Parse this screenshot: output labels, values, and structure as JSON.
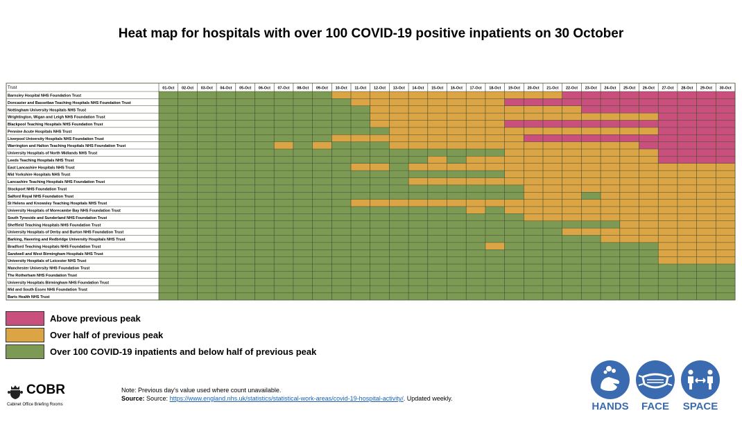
{
  "title": "Heat map for hospitals with over 100 COVID-19 positive inpatients on 30 October",
  "chart_data": {
    "type": "heatmap",
    "column_header": "Trust",
    "days": [
      "01-Oct",
      "02-Oct",
      "03-Oct",
      "04-Oct",
      "05-Oct",
      "06-Oct",
      "07-Oct",
      "08-Oct",
      "09-Oct",
      "10-Oct",
      "11-Oct",
      "12-Oct",
      "13-Oct",
      "14-Oct",
      "15-Oct",
      "16-Oct",
      "17-Oct",
      "18-Oct",
      "19-Oct",
      "20-Oct",
      "21-Oct",
      "22-Oct",
      "23-Oct",
      "24-Oct",
      "25-Oct",
      "26-Oct",
      "27-Oct",
      "28-Oct",
      "29-Oct",
      "30-Oct"
    ],
    "status_key": {
      "G": "Over 100 COVID-19 inpatients and below half of previous peak",
      "A": "Over half of previous peak",
      "P": "Above previous peak"
    },
    "colors": {
      "G": "#7d9a55",
      "A": "#dba444",
      "P": "#c9507c",
      "grid": "#3c4a2a"
    },
    "trusts": [
      {
        "name": "Barnsley Hospital NHS Foundation Trust",
        "status": "GGGGGGGGGAAAAAAAAAAAAPPPPPPPPP"
      },
      {
        "name": "Doncaster and Bassetlaw Teaching Hospitals NHS Foundation Trust",
        "status": "GGGGGGGGGGAAAAAAAAPPPPPPPPPPPP"
      },
      {
        "name": "Nottingham University Hospitals NHS Trust",
        "status": "GGGGGGGGGGGAAAAAAAAAAAPPPPPPPP"
      },
      {
        "name": "Wrightington, Wigan and Leigh NHS Foundation Trust",
        "status": "GGGGGGGGGGGAAAAAAAAAAAAAAAPPPP"
      },
      {
        "name": "Blackpool Teaching Hospitals NHS Foundation Trust",
        "status": "GGGGGGGGGGGAAAAAAAPPPPPPPPPPPP"
      },
      {
        "name": "Pennine Acute Hospitals NHS Trust",
        "status": "GGGGGGGGGGGGAAAAAAAAAAAAAAPPPP"
      },
      {
        "name": "Liverpool University Hospitals NHS Foundation Trust",
        "status": "GGGGGGGGGAAAAAAAAAAPPPPPPPPPPP"
      },
      {
        "name": "Warrington and Halton Teaching Hospitals NHS Foundation Trust",
        "status": "GGGGGGAGAGGGAAAAAAAAAAAAAPPPPP"
      },
      {
        "name": "University Hospitals of North Midlands NHS Trust",
        "status": "GGGGGGGGGGGGGGGGGGAAAAAAAAPPPP"
      },
      {
        "name": "Leeds Teaching Hospitals NHS Trust",
        "status": "GGGGGGGGGGGGGGAGAAAAAAAAAAPPPP"
      },
      {
        "name": "East Lancashire Hospitals NHS Trust",
        "status": "GGGGGGGGGGAAGAAAAAAAAAAAAAAAAA"
      },
      {
        "name": "Mid Yorkshire Hospitals NHS Trust",
        "status": "GGGGGGGGGGGGGGGGGGAAAAAAAAAAAA"
      },
      {
        "name": "Lancashire Teaching Hospitals NHS Foundation Trust",
        "status": "GGGGGGGGGGGGGAAAAAAAAAAAAAAAAA"
      },
      {
        "name": "Stockport NHS Foundation Trust",
        "status": "GGGGGGGGGGGGGGGGGGGAAAAAAAAAAA"
      },
      {
        "name": "Salford Royal NHS Foundation Trust",
        "status": "GGGGGGGGGGGGGGGGGGGAAAGAAAAAAA"
      },
      {
        "name": "St Helens and Knowsley Teaching Hospitals NHS Trust",
        "status": "GGGGGGGGGGAAAAAAAAAAAAAAAAAAAA"
      },
      {
        "name": "University Hospitals of Morecambe Bay NHS Foundation Trust",
        "status": "GGGGGGGGGGGGGGGGAGAAAAAAAAAAAA"
      },
      {
        "name": "South Tyneside and Sunderland NHS Foundation Trust",
        "status": "GGGGGGGGGGGGGGGGGGGAAAAAAAAAAA"
      },
      {
        "name": "Sheffield Teaching Hospitals NHS Foundation Trust",
        "status": "GGGGGGGGGGGGGGGGGGGGGGGGAAAAAA"
      },
      {
        "name": "University Hospitals of Derby and Burton NHS Foundation Trust",
        "status": "GGGGGGGGGGGGGGGGGGGGGAAAAAAAAA"
      },
      {
        "name": "Barking, Havering and Redbridge University Hospitals NHS Trust",
        "status": "GGGGGGGGGGGGGGGGGGGGGGGAAAAAAA"
      },
      {
        "name": "Bradford Teaching Hospitals NHS Foundation Trust",
        "status": "GGGGGGGGGGGGGGGGGAGGGGGGGGAAAA"
      },
      {
        "name": "Sandwell and West Birmingham Hospitals NHS Trust",
        "status": "GGGGGGGGGGGGGGGGGGGGGGGGGGAAAA"
      },
      {
        "name": "University Hospitals of Leicester NHS Trust",
        "status": "GGGGGGGGGGGGGGGGGGGGGGGGGGAAAA"
      },
      {
        "name": "Manchester University NHS Foundation Trust",
        "status": "GGGGGGGGGGGGGGGGGGGGGGGGGGGGGG"
      },
      {
        "name": "The Rotherham NHS Foundation Trust",
        "status": "GGGGGGGGGGGGGGGGGGGGGGGGGGGGGG"
      },
      {
        "name": "University Hospitals Birmingham NHS Foundation Trust",
        "status": "GGGGGGGGGGGGGGGGGGGGGGGGGGGGGG"
      },
      {
        "name": "Mid and South Essex NHS Foundation Trust",
        "status": "GGGGGGGGGGGGGGGGGGGGGGGGGGGGGG"
      },
      {
        "name": "Barts Health NHS Trust",
        "status": "GGGGGGGGGGGGGGGGGGGGGGGGGGGGGG"
      }
    ]
  },
  "legend": {
    "above_label": "Above previous peak",
    "half_label": "Over half of previous peak",
    "below_label": "Over 100 COVID-19 inpatients and below half of previous peak"
  },
  "note": {
    "line1": "Note: Previous day's value used where count unavailable.",
    "source_label": "Source:",
    "source_prefix": "Source:",
    "source_link": "https://www.england.nhs.uk/statistics/statistical-work-areas/covid-19-hospital-activity/",
    "source_suffix": ". Updated weekly."
  },
  "cobr": {
    "title": "COBR",
    "subtitle": "Cabinet Office Briefing Rooms",
    "crest_icon": "royal-crest-icon"
  },
  "hands_face_space": {
    "hands_label": "HANDS",
    "face_label": "FACE",
    "space_label": "SPACE",
    "color": "#3a6bb0",
    "icons": [
      "hand-washing-icon",
      "face-mask-icon",
      "social-distance-icon"
    ]
  }
}
